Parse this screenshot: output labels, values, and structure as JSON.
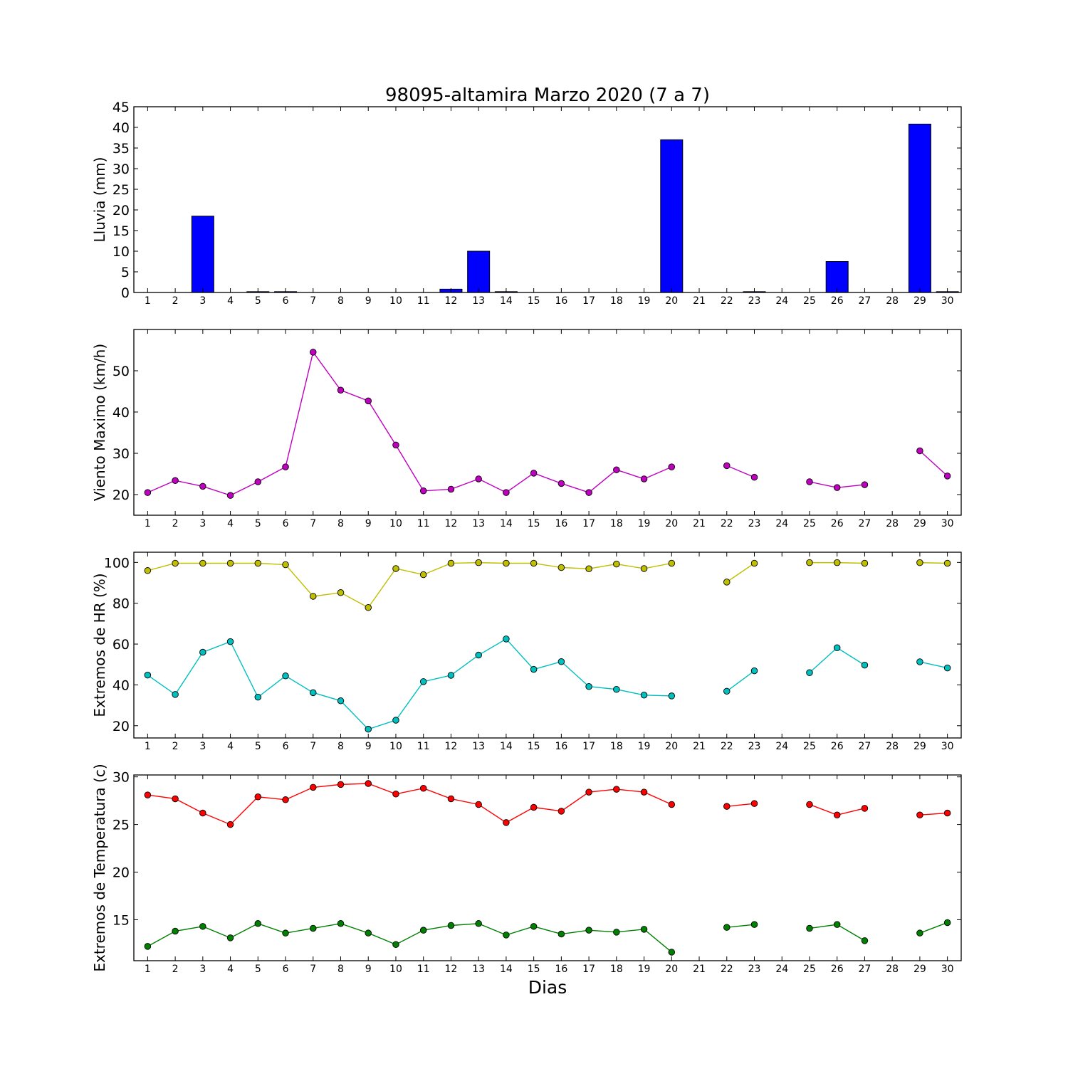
{
  "title": "98095-altamira Marzo 2020  (7 a 7)",
  "xlabel": "Dias",
  "chart_data": [
    {
      "type": "bar",
      "ylabel": "Lluvia (mm)",
      "ylim": [
        0,
        45
      ],
      "yticks": [
        0,
        5,
        10,
        15,
        20,
        25,
        30,
        35,
        40,
        45
      ],
      "xlim": [
        0.5,
        30.5
      ],
      "categories": [
        1,
        2,
        3,
        4,
        5,
        6,
        7,
        8,
        9,
        10,
        11,
        12,
        13,
        14,
        15,
        16,
        17,
        18,
        19,
        20,
        21,
        22,
        23,
        24,
        25,
        26,
        27,
        28,
        29,
        30
      ],
      "series": [
        {
          "color": "#0000ff",
          "values": [
            0,
            0,
            18.5,
            0,
            0.2,
            0.2,
            0,
            0,
            0,
            0,
            0,
            0.8,
            10,
            0.2,
            0,
            0,
            0,
            0,
            0,
            37,
            0,
            0,
            0.2,
            0,
            0,
            7.5,
            0,
            0,
            40.8,
            0.2
          ]
        }
      ]
    },
    {
      "type": "line",
      "ylabel": "Viento Maximo (km/h)",
      "ylim": [
        15,
        60
      ],
      "yticks": [
        20,
        30,
        40,
        50
      ],
      "xlim": [
        0.5,
        30.5
      ],
      "x": [
        1,
        2,
        3,
        4,
        5,
        6,
        7,
        8,
        9,
        10,
        11,
        12,
        13,
        14,
        15,
        16,
        17,
        18,
        19,
        20,
        21,
        22,
        23,
        24,
        25,
        26,
        27,
        28,
        29,
        30
      ],
      "series": [
        {
          "color": "#bf00bf",
          "values": [
            20.5,
            23.4,
            22,
            19.8,
            23.1,
            26.7,
            54.5,
            45.3,
            42.7,
            32,
            20.9,
            21.3,
            23.8,
            20.5,
            25.2,
            22.7,
            20.5,
            26,
            23.8,
            26.7,
            null,
            27,
            24.2,
            null,
            23.1,
            21.7,
            22.4,
            null,
            30.6,
            24.5
          ]
        }
      ]
    },
    {
      "type": "line",
      "ylabel": "Extremos de HR (%)",
      "ylim": [
        14,
        105
      ],
      "yticks": [
        20,
        40,
        60,
        80,
        100
      ],
      "xlim": [
        0.5,
        30.5
      ],
      "x": [
        1,
        2,
        3,
        4,
        5,
        6,
        7,
        8,
        9,
        10,
        11,
        12,
        13,
        14,
        15,
        16,
        17,
        18,
        19,
        20,
        21,
        22,
        23,
        24,
        25,
        26,
        27,
        28,
        29,
        30
      ],
      "series": [
        {
          "color": "#bfbf00",
          "values": [
            96,
            99.6,
            99.6,
            99.6,
            99.6,
            98.9,
            83.4,
            85.2,
            77.9,
            97,
            94,
            99.6,
            99.9,
            99.6,
            99.6,
            97.5,
            96.9,
            99.2,
            97,
            99.6,
            null,
            90.4,
            99.6,
            null,
            99.9,
            99.9,
            99.6,
            null,
            99.9,
            99.6
          ]
        },
        {
          "color": "#00bfbf",
          "values": [
            44.8,
            35.3,
            56,
            61.2,
            34,
            44.4,
            36.2,
            32.2,
            18.3,
            22.7,
            41.6,
            44.7,
            54.6,
            62.5,
            47.6,
            51.4,
            39.2,
            37.8,
            35,
            34.6,
            null,
            36.9,
            46.9,
            null,
            46,
            58.2,
            49.7,
            null,
            51.3,
            48.3
          ]
        }
      ]
    },
    {
      "type": "line",
      "ylabel": "Extremos de Temperatura (c)",
      "ylim": [
        10.7,
        30.2
      ],
      "yticks": [
        15,
        20,
        25,
        30
      ],
      "xlim": [
        0.5,
        30.5
      ],
      "x": [
        1,
        2,
        3,
        4,
        5,
        6,
        7,
        8,
        9,
        10,
        11,
        12,
        13,
        14,
        15,
        16,
        17,
        18,
        19,
        20,
        21,
        22,
        23,
        24,
        25,
        26,
        27,
        28,
        29,
        30
      ],
      "series": [
        {
          "color": "#ff0000",
          "values": [
            28.1,
            27.7,
            26.2,
            25,
            27.9,
            27.6,
            28.9,
            29.2,
            29.3,
            28.2,
            28.8,
            27.7,
            27.1,
            25.2,
            26.8,
            26.4,
            28.4,
            28.7,
            28.4,
            27.1,
            null,
            26.9,
            27.2,
            null,
            27.1,
            26,
            26.7,
            null,
            26,
            26.2
          ]
        },
        {
          "color": "#008000",
          "values": [
            12.2,
            13.8,
            14.3,
            13.1,
            14.6,
            13.6,
            14.1,
            14.6,
            13.6,
            12.4,
            13.9,
            14.4,
            14.6,
            13.4,
            14.3,
            13.5,
            13.9,
            13.7,
            14,
            11.6,
            null,
            14.2,
            14.5,
            null,
            14.1,
            14.5,
            12.8,
            null,
            13.6,
            14.7
          ]
        }
      ]
    }
  ]
}
